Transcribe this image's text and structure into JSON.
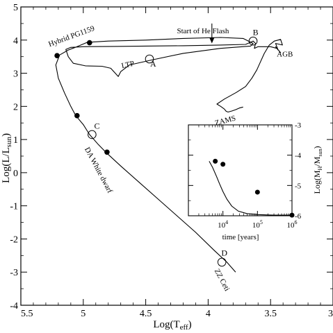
{
  "chart_data": [
    {
      "type": "line",
      "xlabel": "Log(T",
      "xlabel_sub": "eff",
      "xlabel_close": ")",
      "ylabel": "Log(L/L",
      "ylabel_sub": "sun",
      "ylabel_close": ")",
      "xlim": [
        5.5,
        3.0
      ],
      "ylim": [
        -4,
        5
      ],
      "x_ticks": [
        5.5,
        5,
        4.5,
        4,
        3.5,
        3
      ],
      "x_tick_labels": [
        "5.5",
        "5",
        "4.5",
        "4",
        "3.5",
        "3"
      ],
      "y_ticks": [
        -4,
        -3,
        -2,
        -1,
        0,
        1,
        2,
        3,
        4,
        5
      ],
      "y_tick_labels": [
        "-4",
        "-3",
        "-2",
        "-1",
        "0",
        "1",
        "2",
        "3",
        "4",
        "5"
      ],
      "grid": false,
      "series": [
        {
          "track": [
            [
              3.72,
              1.98
            ],
            [
              3.75,
              1.95
            ],
            [
              3.78,
              1.9
            ],
            [
              3.81,
              1.86
            ],
            [
              3.84,
              1.83
            ],
            [
              3.855,
              1.85
            ],
            [
              3.87,
              1.92
            ],
            [
              3.9,
              2.0
            ],
            [
              3.93,
              2.07
            ],
            [
              3.87,
              2.22
            ],
            [
              3.775,
              2.42
            ],
            [
              3.7,
              2.6
            ],
            [
              3.65,
              2.85
            ],
            [
              3.61,
              3.1
            ],
            [
              3.58,
              3.35
            ],
            [
              3.55,
              3.6
            ],
            [
              3.51,
              3.85
            ],
            [
              3.47,
              3.97
            ],
            [
              3.42,
              4.02
            ],
            [
              3.405,
              3.85
            ],
            [
              3.46,
              3.9
            ],
            [
              3.44,
              3.7
            ],
            [
              3.46,
              3.8
            ],
            [
              3.42,
              3.62
            ],
            [
              3.45,
              3.75
            ],
            [
              3.5,
              3.8
            ],
            [
              3.54,
              3.8
            ],
            [
              3.6,
              3.8
            ],
            [
              3.63,
              3.75
            ],
            [
              3.62,
              3.9
            ],
            [
              3.64,
              3.97
            ],
            [
              3.7,
              3.87
            ],
            [
              3.9,
              3.85
            ],
            [
              4.2,
              3.83
            ],
            [
              4.5,
              3.82
            ],
            [
              4.75,
              3.81
            ],
            [
              5.0,
              3.8
            ],
            [
              5.1,
              3.78
            ],
            [
              5.14,
              3.72
            ],
            [
              5.12,
              3.5
            ],
            [
              5.08,
              3.3
            ],
            [
              4.98,
              3.22
            ],
            [
              4.85,
              3.21
            ],
            [
              4.78,
              3.15
            ],
            [
              4.72,
              2.9
            ],
            [
              4.7,
              3.05
            ],
            [
              4.63,
              3.25
            ],
            [
              4.45,
              3.4
            ],
            [
              4.2,
              3.6
            ],
            [
              3.9,
              3.75
            ],
            [
              3.66,
              3.82
            ],
            [
              3.64,
              3.9
            ],
            [
              3.72,
              4.05
            ],
            [
              3.9,
              4.08
            ],
            [
              4.2,
              4.05
            ],
            [
              4.5,
              4.0
            ],
            [
              4.8,
              3.97
            ],
            [
              4.97,
              3.93
            ],
            [
              5.05,
              3.8
            ],
            [
              5.12,
              3.7
            ],
            [
              5.19,
              3.55
            ],
            [
              5.22,
              3.25
            ],
            [
              5.2,
              2.85
            ],
            [
              5.15,
              2.4
            ],
            [
              5.1,
              2.0
            ],
            [
              5.06,
              1.72
            ],
            [
              5.0,
              1.45
            ],
            [
              4.95,
              1.15
            ],
            [
              4.88,
              0.85
            ],
            [
              4.82,
              0.62
            ],
            [
              4.7,
              0.2
            ],
            [
              4.55,
              -0.3
            ],
            [
              4.4,
              -0.8
            ],
            [
              4.25,
              -1.3
            ],
            [
              4.1,
              -1.8
            ],
            [
              3.95,
              -2.35
            ],
            [
              3.85,
              -2.7
            ],
            [
              3.78,
              -3.0
            ]
          ]
        }
      ],
      "points": [
        {
          "x": 5.21,
          "y": 3.53
        },
        {
          "x": 4.95,
          "y": 3.92
        },
        {
          "x": 5.05,
          "y": 1.72
        },
        {
          "x": 4.81,
          "y": 0.62
        }
      ],
      "markers": [
        {
          "label": "A",
          "x": 4.47,
          "y": 3.43,
          "lx": 4.44,
          "ly": 3.2
        },
        {
          "label": "B",
          "x": 3.64,
          "y": 3.97,
          "lx": 3.62,
          "ly": 4.15
        },
        {
          "label": "C",
          "x": 4.93,
          "y": 1.15,
          "lx": 4.89,
          "ly": 1.33
        },
        {
          "label": "D",
          "x": 3.89,
          "y": -2.7,
          "lx": 3.87,
          "ly": -2.5
        }
      ],
      "annotations": [
        {
          "text": "Hybrid PG1159",
          "x": 5.27,
          "y": 3.8,
          "rotate": -20
        },
        {
          "text": "Start of He Flash",
          "x": 4.25,
          "y": 4.2,
          "rotate": 0
        },
        {
          "text": "LTP",
          "x": 4.69,
          "y": 3.15,
          "rotate": -12
        },
        {
          "text": "AGB",
          "x": 3.45,
          "y": 3.5,
          "rotate": 0
        },
        {
          "text": "ZAMS",
          "x": 3.94,
          "y": 1.42,
          "rotate": -15
        },
        {
          "text": "DA White dwarf",
          "x": 4.99,
          "y": 0.72,
          "rotate": 62
        },
        {
          "text": "ZZ Ceti",
          "x": 3.95,
          "y": -2.95,
          "rotate": 62
        }
      ],
      "arrow": {
        "x1": 3.97,
        "y1": 4.5,
        "x2": 3.97,
        "y2": 3.9
      }
    },
    {
      "type": "line",
      "xlabel": "time [years]",
      "ylabel": "Log(M",
      "ylabel_sub": "H",
      "ylabel_mid": "/M",
      "ylabel_sub2": "sun",
      "ylabel_close": ")",
      "x_scale": "log",
      "xlim": [
        1000,
        1000000
      ],
      "ylim": [
        -6,
        -3
      ],
      "x_ticks": [
        10000,
        100000,
        1000000
      ],
      "x_tick_labels": [
        {
          "base": "10",
          "exp": "4"
        },
        {
          "base": "10",
          "exp": "5"
        },
        {
          "base": "10",
          "exp": "6"
        }
      ],
      "y_ticks": [
        -6,
        -5,
        -4,
        -3
      ],
      "y_tick_labels": [
        "-6",
        "-5",
        "-4",
        "-3"
      ],
      "curve": [
        [
          4000,
          -4.2
        ],
        [
          5000,
          -4.4
        ],
        [
          6500,
          -4.7
        ],
        [
          8000,
          -4.95
        ],
        [
          10000,
          -5.2
        ],
        [
          13000,
          -5.45
        ],
        [
          18000,
          -5.68
        ],
        [
          28000,
          -5.85
        ],
        [
          50000,
          -5.93
        ],
        [
          100000,
          -5.96
        ],
        [
          300000,
          -5.98
        ],
        [
          1000000,
          -5.98
        ]
      ],
      "points": [
        {
          "x": 6000,
          "y": -4.2
        },
        {
          "x": 10000,
          "y": -4.3
        },
        {
          "x": 100000,
          "y": -5.22
        },
        {
          "x": 1000000,
          "y": -5.98
        }
      ]
    }
  ]
}
